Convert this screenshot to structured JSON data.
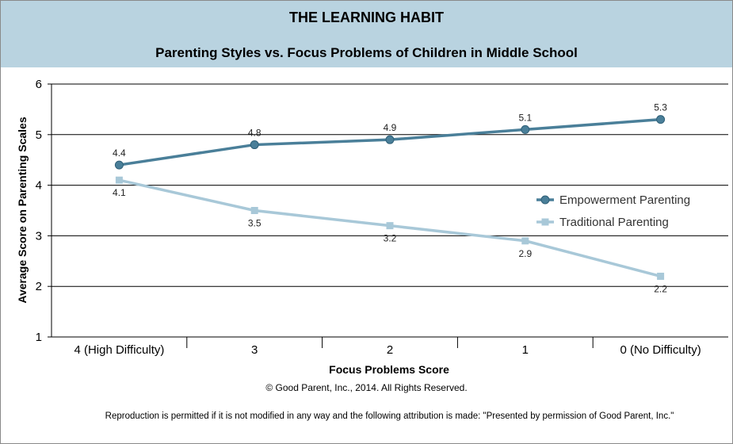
{
  "header": {
    "brand": "THE LEARNING HABIT",
    "title": "Parenting Styles vs. Focus Problems of Children in Middle School"
  },
  "footer": {
    "copyright": "© Good Parent, Inc., 2014. All Rights Reserved.",
    "reproduction": "Reproduction is permitted if it is not modified in any way and the following attribution is made: \"Presented by permission of Good Parent, Inc.\""
  },
  "chart_data": {
    "type": "line",
    "title": "Parenting Styles vs. Focus Problems of Children in Middle School",
    "xlabel": "Focus Problems Score",
    "ylabel": "Average Score on Parenting Scales",
    "categories": [
      "4 (High Difficulty)",
      "3",
      "2",
      "1",
      "0 (No Difficulty)"
    ],
    "ylim": [
      1,
      6
    ],
    "yticks": [
      1,
      2,
      3,
      4,
      5,
      6
    ],
    "grid": true,
    "legend_position": "right",
    "series": [
      {
        "name": "Empowerment Parenting",
        "values": [
          4.4,
          4.8,
          4.9,
          5.1,
          5.3
        ],
        "labels": [
          "4.4",
          "4.8",
          "4.9",
          "5.1",
          "5.3"
        ],
        "color": "#4a7f99",
        "marker": "circle"
      },
      {
        "name": "Traditional Parenting",
        "values": [
          4.1,
          3.5,
          3.2,
          2.9,
          2.2
        ],
        "labels": [
          "4.1",
          "3.5",
          "3.2",
          "2.9",
          "2.2"
        ],
        "color": "#a8c8d8",
        "marker": "square"
      }
    ]
  }
}
